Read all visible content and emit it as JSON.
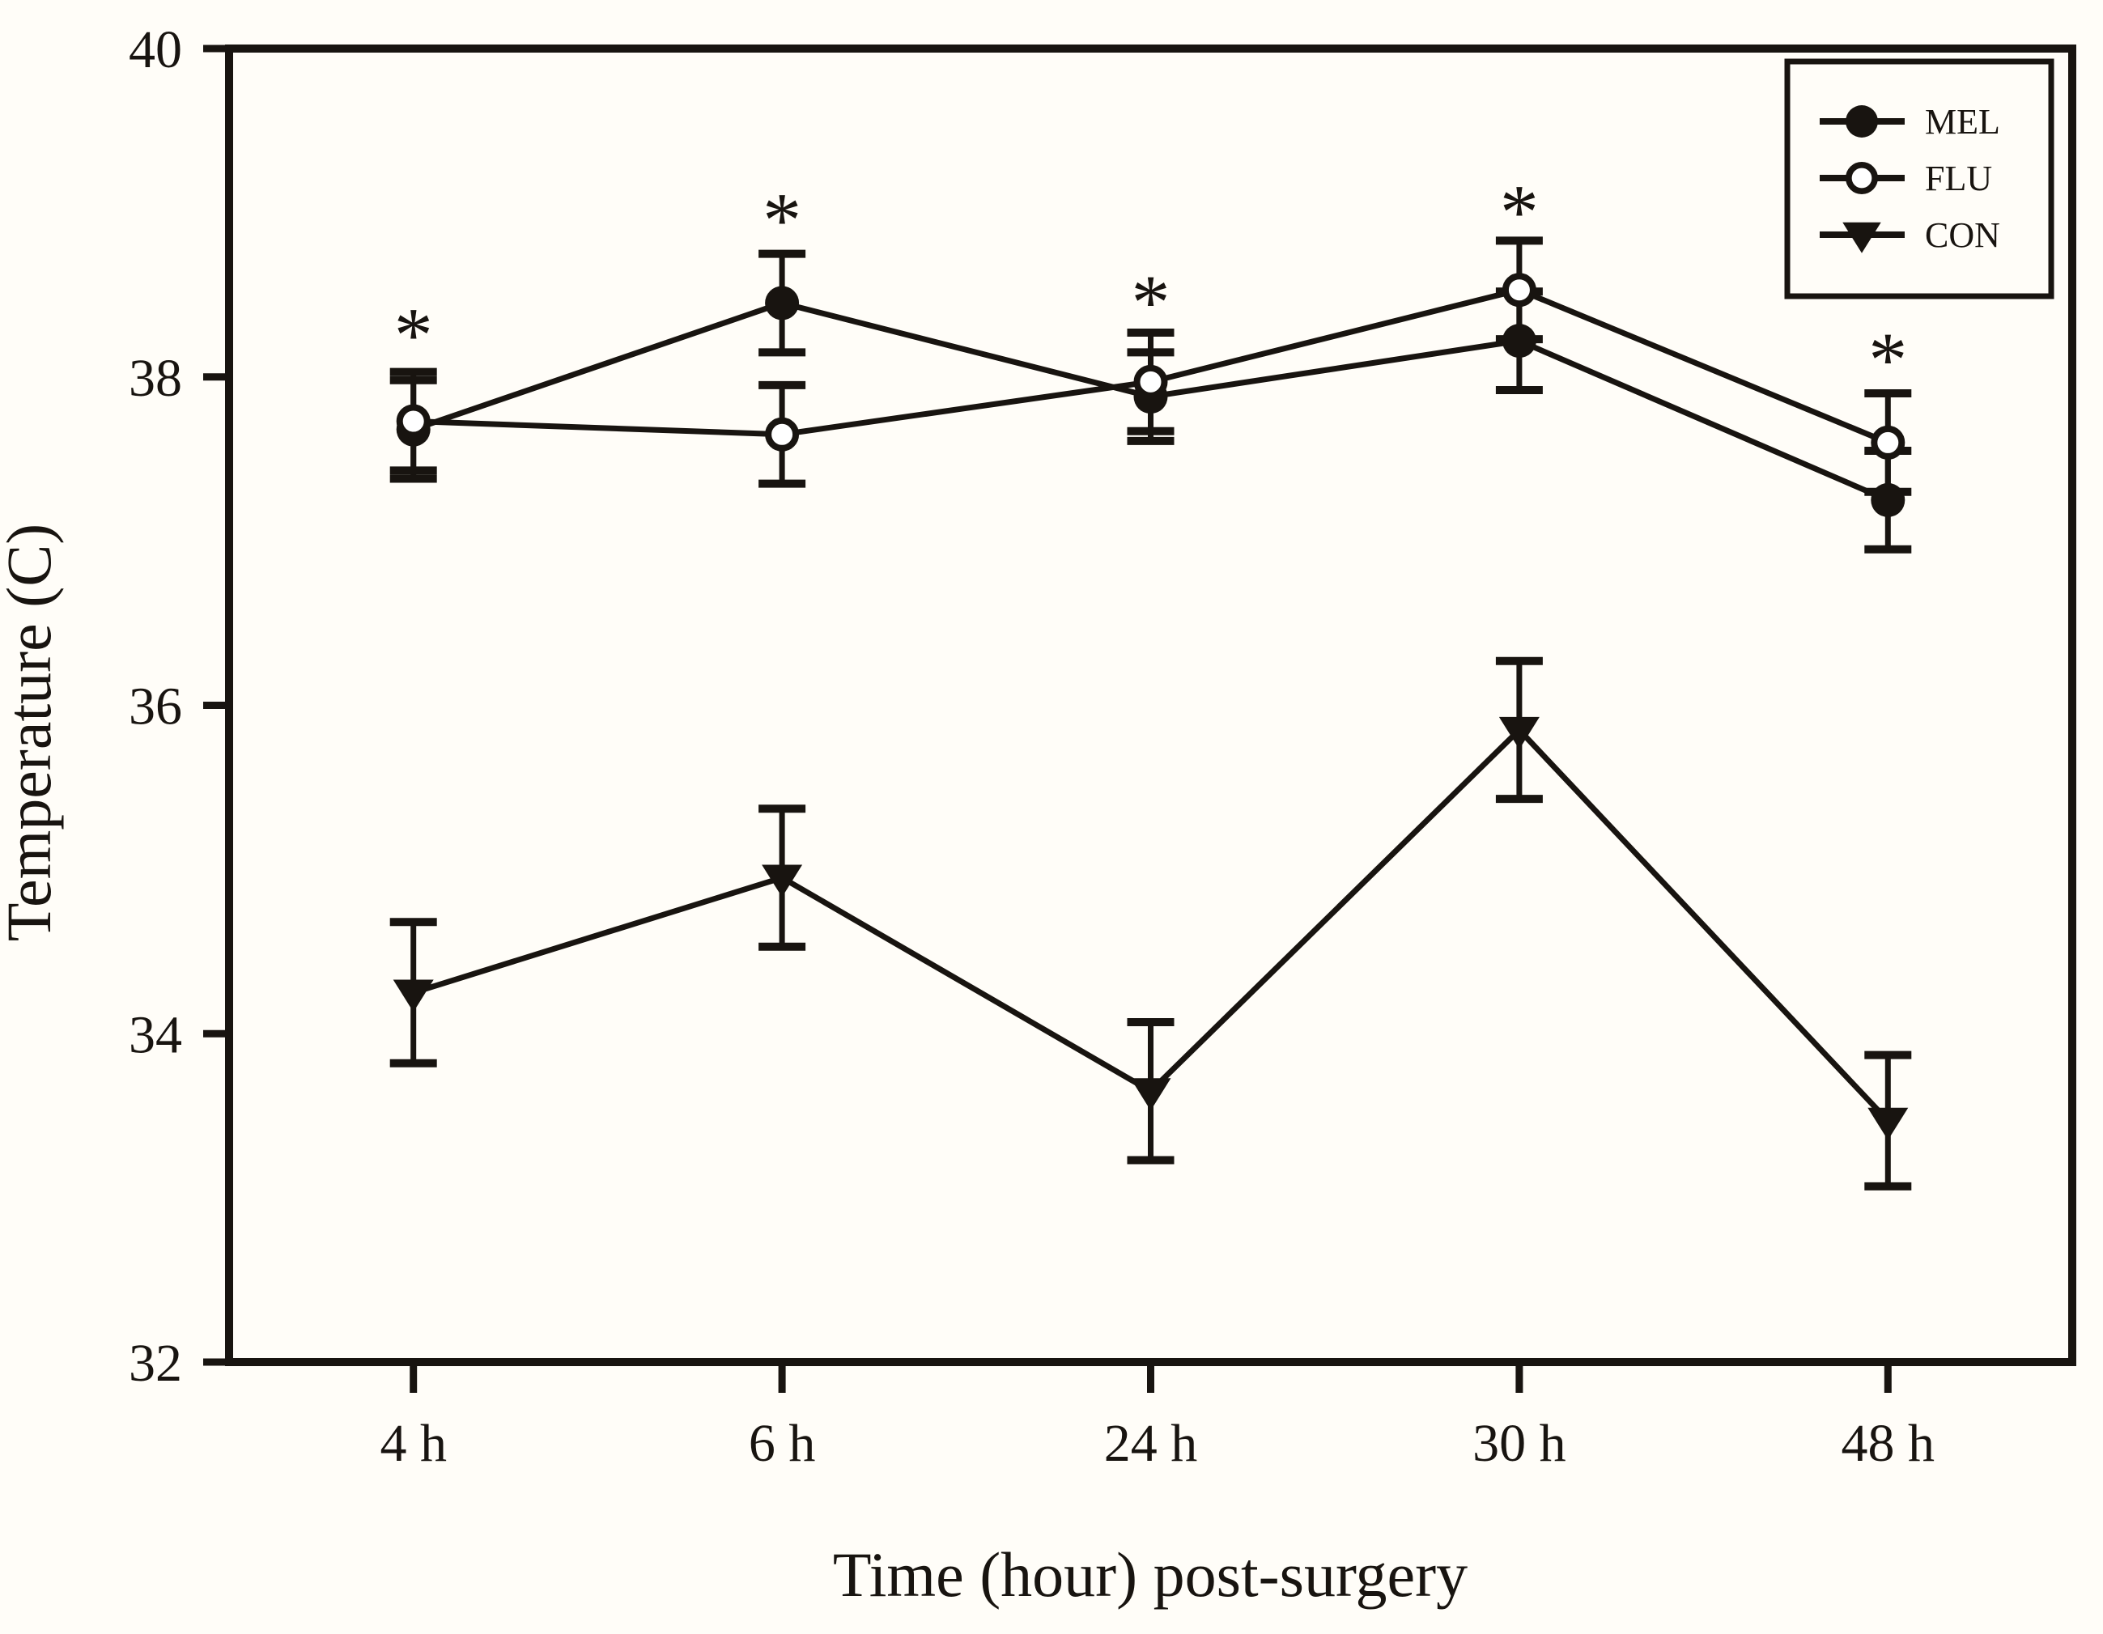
{
  "chart_data": {
    "type": "line",
    "title": "",
    "xlabel": "Time (hour) post-surgery",
    "ylabel": "Temperature (C)",
    "categories": [
      "4 h",
      "6 h",
      "24 h",
      "30 h",
      "48 h"
    ],
    "ylim": [
      32,
      40
    ],
    "yticks": [
      "40",
      "38",
      "36",
      "34",
      "32"
    ],
    "ytick_values": [
      40,
      38,
      36,
      34,
      32
    ],
    "grid": false,
    "legend_position": "top-right",
    "series": [
      {
        "name": "MEL",
        "marker": "filled-circle",
        "values": [
          37.68,
          38.45,
          37.88,
          38.22,
          37.25
        ],
        "errors": [
          0.3,
          0.3,
          0.27,
          0.3,
          0.3
        ]
      },
      {
        "name": "FLU",
        "marker": "open-circle",
        "values": [
          37.73,
          37.65,
          37.97,
          38.53,
          37.6
        ],
        "errors": [
          0.3,
          0.3,
          0.3,
          0.3,
          0.3
        ]
      },
      {
        "name": "CON",
        "marker": "filled-triangle-down",
        "values": [
          34.25,
          34.95,
          33.65,
          35.85,
          33.47
        ],
        "errors": [
          0.43,
          0.42,
          0.42,
          0.42,
          0.4
        ]
      }
    ],
    "annotations": {
      "symbol": "*",
      "meaning": "significance marker above each time point",
      "y_positions": [
        38.35,
        39.05,
        38.55,
        39.1,
        38.2
      ]
    }
  },
  "colors": {
    "foreground": "#181410",
    "background": "#fffdf8"
  }
}
